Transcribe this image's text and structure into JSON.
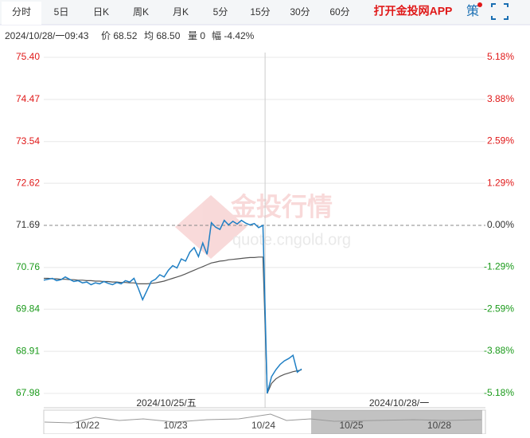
{
  "tabs": [
    "分时",
    "5日",
    "日K",
    "周K",
    "月K",
    "5分",
    "15分",
    "30分",
    "60分"
  ],
  "app_link": "打开金投网APP",
  "strategy": "策",
  "info": {
    "datetime": "2024/10/28/一09:43",
    "price": "价 68.52",
    "avg": "均 68.50",
    "volume": "量 0",
    "change": "幅 -4.42%"
  },
  "watermark": {
    "brand": "金投行情",
    "site": "quote.cngold.org"
  },
  "sessions": [
    "2024/10/25/五",
    "2024/10/28/一"
  ],
  "navigator": {
    "labels": [
      "10/22",
      "10/23",
      "10/24",
      "10/25",
      "10/28"
    ]
  },
  "chart_data": {
    "type": "line",
    "ylim": [
      67.98,
      75.4
    ],
    "yticks": [
      {
        "value": 75.4,
        "label": "75.40"
      },
      {
        "value": 74.47,
        "label": "74.47"
      },
      {
        "value": 73.54,
        "label": "73.54"
      },
      {
        "value": 72.62,
        "label": "72.62"
      },
      {
        "value": 71.69,
        "label": "71.69"
      },
      {
        "value": 70.76,
        "label": "70.76"
      },
      {
        "value": 69.84,
        "label": "69.84"
      },
      {
        "value": 68.91,
        "label": "68.91"
      },
      {
        "value": 67.98,
        "label": "67.98"
      }
    ],
    "y2lim": [
      -5.18,
      5.18
    ],
    "y2ticks": [
      {
        "value": 5.18,
        "label": "5.18%"
      },
      {
        "value": 3.88,
        "label": "3.88%"
      },
      {
        "value": 2.59,
        "label": "2.59%"
      },
      {
        "value": 1.29,
        "label": "1.29%"
      },
      {
        "value": 0,
        "label": "0.00%"
      },
      {
        "value": -1.29,
        "label": "-1.29%"
      },
      {
        "value": -2.59,
        "label": "-2.59%"
      },
      {
        "value": -3.88,
        "label": "-3.88%"
      },
      {
        "value": -5.18,
        "label": "-5.18%"
      }
    ],
    "grid": true,
    "series": [
      {
        "color": "#1f7fc4",
        "values": [
          70.48,
          70.5,
          70.52,
          70.47,
          70.49,
          70.55,
          70.5,
          70.45,
          70.47,
          70.42,
          70.44,
          70.38,
          70.42,
          70.4,
          70.45,
          70.41,
          70.38,
          70.43,
          70.4,
          70.47,
          70.44,
          70.52,
          70.3,
          70.05,
          70.25,
          70.45,
          70.5,
          70.6,
          70.55,
          70.7,
          70.8,
          70.75,
          70.95,
          70.9,
          71.1,
          71.2,
          71.0,
          71.3,
          71.05,
          71.75,
          71.65,
          71.6,
          71.8,
          71.7,
          71.78,
          71.72,
          71.8,
          71.74,
          71.7,
          71.73,
          71.64,
          71.69,
          67.98,
          68.35,
          68.5,
          68.62,
          68.7,
          68.75,
          68.82,
          68.45,
          68.52
        ]
      },
      {
        "color": "#555555",
        "values": [
          70.52,
          70.52,
          70.51,
          70.51,
          70.5,
          70.5,
          70.49,
          70.49,
          70.48,
          70.48,
          70.47,
          70.47,
          70.46,
          70.46,
          70.45,
          70.45,
          70.44,
          70.44,
          70.43,
          70.43,
          70.42,
          70.42,
          70.4,
          70.4,
          70.4,
          70.41,
          70.42,
          70.44,
          70.46,
          70.49,
          70.52,
          70.55,
          70.58,
          70.62,
          70.66,
          70.7,
          70.74,
          70.78,
          70.82,
          70.86,
          70.88,
          70.9,
          70.91,
          70.93,
          70.94,
          70.95,
          70.96,
          70.97,
          70.98,
          70.98,
          70.99,
          70.99,
          67.98,
          68.2,
          68.3,
          68.36,
          68.4,
          68.43,
          68.46,
          68.48,
          68.5
        ]
      }
    ]
  }
}
